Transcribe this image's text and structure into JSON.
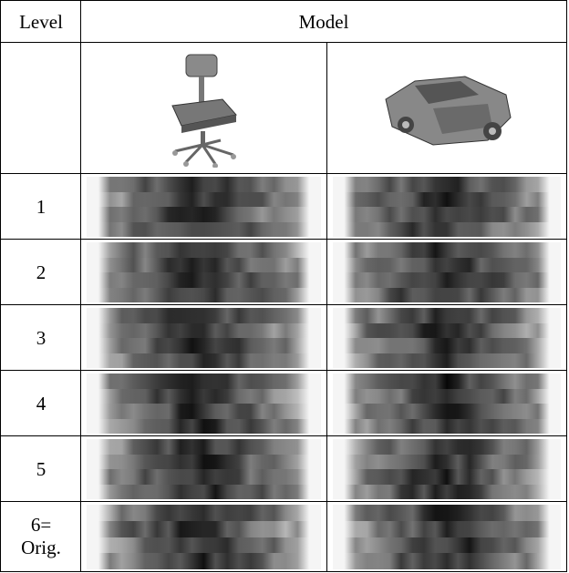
{
  "header": {
    "level": "Level",
    "model": "Model"
  },
  "rows": [
    {
      "label": [
        "1"
      ]
    },
    {
      "label": [
        "2"
      ]
    },
    {
      "label": [
        "3"
      ]
    },
    {
      "label": [
        "4"
      ]
    },
    {
      "label": [
        "5"
      ]
    },
    {
      "label": [
        "6=",
        "Orig."
      ]
    }
  ]
}
